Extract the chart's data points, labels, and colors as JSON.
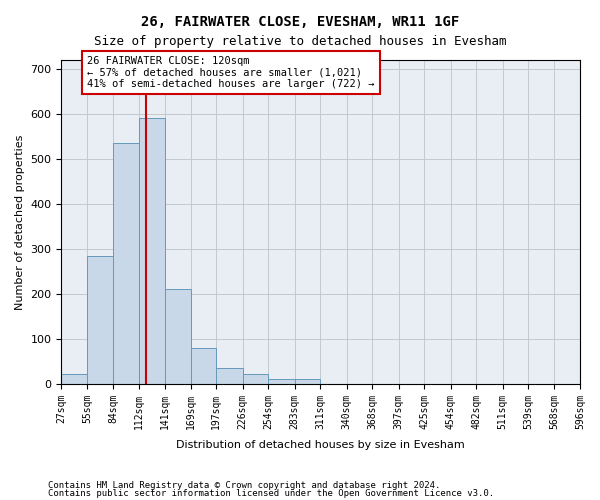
{
  "title": "26, FAIRWATER CLOSE, EVESHAM, WR11 1GF",
  "subtitle": "Size of property relative to detached houses in Evesham",
  "xlabel": "Distribution of detached houses by size in Evesham",
  "ylabel": "Number of detached properties",
  "footnote1": "Contains HM Land Registry data © Crown copyright and database right 2024.",
  "footnote2": "Contains public sector information licensed under the Open Government Licence v3.0.",
  "bin_edges": [
    27,
    55,
    84,
    112,
    141,
    169,
    197,
    226,
    254,
    283,
    311,
    340,
    368,
    397,
    425,
    454,
    482,
    511,
    539,
    568,
    596
  ],
  "bar_heights": [
    22,
    285,
    535,
    590,
    210,
    80,
    35,
    22,
    12,
    10,
    0,
    0,
    0,
    0,
    0,
    0,
    0,
    0,
    0,
    0
  ],
  "bar_color": "#c8d8e8",
  "bar_edge_color": "#6699bb",
  "grid_color": "#c0c8d0",
  "property_size": 120,
  "vline_color": "#cc0000",
  "annotation_text": "26 FAIRWATER CLOSE: 120sqm\n← 57% of detached houses are smaller (1,021)\n41% of semi-detached houses are larger (722) →",
  "annotation_box_color": "#ffffff",
  "annotation_box_edge": "#cc0000",
  "ylim": [
    0,
    720
  ],
  "yticks": [
    0,
    100,
    200,
    300,
    400,
    500,
    600,
    700
  ],
  "bg_color": "#e8eef4"
}
